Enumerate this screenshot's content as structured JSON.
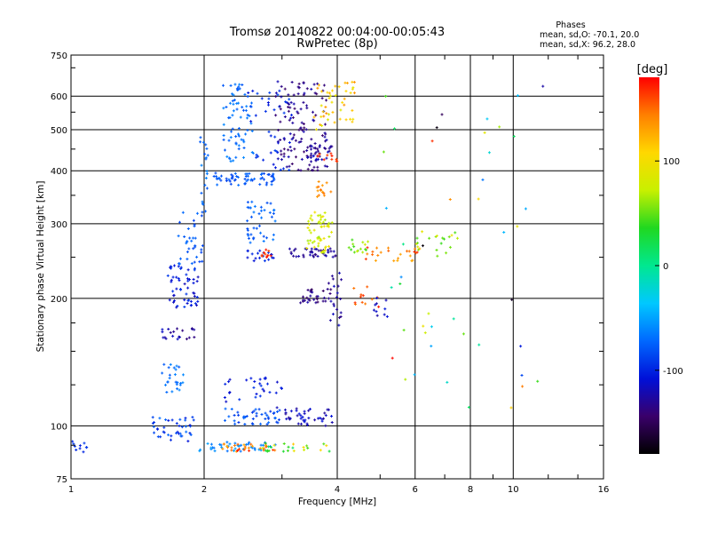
{
  "figure": {
    "title_line1": "Tromsø 20140822 00:04:00-00:05:43",
    "title_line2": "RwPretec (8p)",
    "info_heading": "Phases",
    "info_line1": "mean, sd,O: -70.1, 20.0",
    "info_line2": "mean, sd,X:  96.2, 28.0"
  },
  "colorbar": {
    "label": "[deg]",
    "min": -180,
    "max": 180,
    "ticks": [
      "100",
      "0",
      "-100"
    ],
    "tick_values": [
      100,
      0,
      -100
    ],
    "colors": [
      "#000000",
      "#3a006a",
      "#0010d8",
      "#0068ff",
      "#00c8ff",
      "#00e890",
      "#20d820",
      "#c8f000",
      "#ffd800",
      "#ff8000",
      "#ff0000"
    ]
  },
  "chart_data": {
    "type": "scatter",
    "xlabel": "Frequency [MHz]",
    "ylabel": "Stationary phase Virtual Height [km]",
    "x_scale": "log",
    "y_scale": "log",
    "xlim": [
      1,
      16
    ],
    "ylim": [
      75,
      750
    ],
    "grid": true,
    "x_ticks": [
      "1",
      "2",
      "4",
      "6",
      "8",
      "10",
      "16"
    ],
    "x_tick_values": [
      1,
      2,
      4,
      6,
      8,
      10,
      16
    ],
    "x_gridlines": [
      2,
      4,
      6,
      8,
      10
    ],
    "y_ticks": [
      "750",
      "600",
      "500",
      "400",
      "300",
      "200",
      "100",
      "75"
    ],
    "y_tick_values": [
      750,
      600,
      500,
      400,
      300,
      200,
      100,
      75
    ],
    "y_gridlines": [
      100,
      200,
      300,
      400,
      500,
      600
    ],
    "color_variable": "phase [deg]",
    "point_clusters": [
      {
        "f": [
          0.98,
          1.09
        ],
        "h": [
          86,
          92
        ],
        "phase": [
          -105,
          -90
        ],
        "n": 12
      },
      {
        "f": [
          1.5,
          1.9
        ],
        "h": [
          92,
          105
        ],
        "phase": [
          -110,
          -70
        ],
        "n": 40
      },
      {
        "f": [
          1.95,
          2.9
        ],
        "h": [
          87,
          92
        ],
        "phase": [
          -70,
          -50
        ],
        "n": 40
      },
      {
        "f": [
          2.2,
          2.9
        ],
        "h": [
          87,
          91
        ],
        "phase": [
          120,
          175
        ],
        "n": 30
      },
      {
        "f": [
          2.7,
          3.9
        ],
        "h": [
          87,
          91
        ],
        "phase": [
          10,
          120
        ],
        "n": 25
      },
      {
        "f": [
          2.2,
          3.0
        ],
        "h": [
          100,
          110
        ],
        "phase": [
          -95,
          -70
        ],
        "n": 45
      },
      {
        "f": [
          2.2,
          3.0
        ],
        "h": [
          110,
          130
        ],
        "phase": [
          -120,
          -90
        ],
        "n": 30
      },
      {
        "f": [
          3.0,
          3.9
        ],
        "h": [
          100,
          110
        ],
        "phase": [
          -130,
          -105
        ],
        "n": 40
      },
      {
        "f": [
          1.6,
          1.8
        ],
        "h": [
          120,
          140
        ],
        "phase": [
          -80,
          -60
        ],
        "n": 25
      },
      {
        "f": [
          1.6,
          1.9
        ],
        "h": [
          160,
          170
        ],
        "phase": [
          -140,
          -110
        ],
        "n": 20
      },
      {
        "f": [
          1.65,
          1.95
        ],
        "h": [
          190,
          240
        ],
        "phase": [
          -120,
          -90
        ],
        "n": 55
      },
      {
        "f": [
          1.75,
          2.0
        ],
        "h": [
          240,
          320
        ],
        "phase": [
          -90,
          -70
        ],
        "n": 35
      },
      {
        "f": [
          1.95,
          2.05
        ],
        "h": [
          320,
          480
        ],
        "phase": [
          -80,
          -60
        ],
        "n": 20
      },
      {
        "f": [
          2.1,
          2.9
        ],
        "h": [
          370,
          395
        ],
        "phase": [
          -90,
          -70
        ],
        "n": 60
      },
      {
        "f": [
          2.2,
          2.6
        ],
        "h": [
          420,
          640
        ],
        "phase": [
          -80,
          -60
        ],
        "n": 70
      },
      {
        "f": [
          2.5,
          3.2
        ],
        "h": [
          400,
          640
        ],
        "phase": [
          -110,
          -85
        ],
        "n": 40
      },
      {
        "f": [
          2.9,
          3.8
        ],
        "h": [
          400,
          650
        ],
        "phase": [
          -145,
          -120
        ],
        "n": 130
      },
      {
        "f": [
          3.4,
          3.9
        ],
        "h": [
          420,
          460
        ],
        "phase": [
          -140,
          -110
        ],
        "n": 25
      },
      {
        "f": [
          3.5,
          4.4
        ],
        "h": [
          500,
          650
        ],
        "phase": [
          80,
          140
        ],
        "n": 45
      },
      {
        "f": [
          3.6,
          4.0
        ],
        "h": [
          420,
          440
        ],
        "phase": [
          160,
          175
        ],
        "n": 10
      },
      {
        "f": [
          2.5,
          2.9
        ],
        "h": [
          245,
          260
        ],
        "phase": [
          -110,
          -90
        ],
        "n": 18
      },
      {
        "f": [
          2.5,
          2.9
        ],
        "h": [
          270,
          340
        ],
        "phase": [
          -85,
          -65
        ],
        "n": 40
      },
      {
        "f": [
          2.7,
          2.9
        ],
        "h": [
          250,
          262
        ],
        "phase": [
          155,
          175
        ],
        "n": 10
      },
      {
        "f": [
          3.1,
          4.0
        ],
        "h": [
          250,
          262
        ],
        "phase": [
          -140,
          -120
        ],
        "n": 40
      },
      {
        "f": [
          3.3,
          3.9
        ],
        "h": [
          195,
          210
        ],
        "phase": [
          -150,
          -120
        ],
        "n": 30
      },
      {
        "f": [
          3.8,
          4.1
        ],
        "h": [
          170,
          230
        ],
        "phase": [
          -135,
          -115
        ],
        "n": 20
      },
      {
        "f": [
          3.4,
          3.9
        ],
        "h": [
          255,
          320
        ],
        "phase": [
          60,
          100
        ],
        "n": 55
      },
      {
        "f": [
          3.6,
          3.9
        ],
        "h": [
          345,
          380
        ],
        "phase": [
          130,
          160
        ],
        "n": 15
      },
      {
        "f": [
          4.2,
          4.8
        ],
        "h": [
          255,
          275
        ],
        "phase": [
          40,
          80
        ],
        "n": 15
      },
      {
        "f": [
          4.6,
          6.2
        ],
        "h": [
          245,
          265
        ],
        "phase": [
          120,
          170
        ],
        "n": 25
      },
      {
        "f": [
          6.0,
          7.5
        ],
        "h": [
          250,
          290
        ],
        "phase": [
          40,
          100
        ],
        "n": 20
      },
      {
        "f": [
          4.3,
          5.0
        ],
        "h": [
          190,
          215
        ],
        "phase": [
          140,
          175
        ],
        "n": 12
      },
      {
        "f": [
          4.8,
          5.2
        ],
        "h": [
          180,
          205
        ],
        "phase": [
          -125,
          -100
        ],
        "n": 10
      },
      {
        "f": [
          5.0,
          12.0
        ],
        "h": [
          100,
          650
        ],
        "phase": [
          -180,
          180
        ],
        "n": 45
      }
    ]
  }
}
